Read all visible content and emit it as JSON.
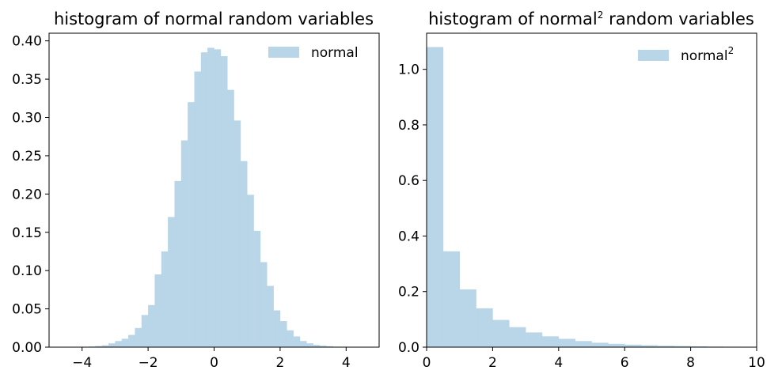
{
  "colors": {
    "bar": "#b9d5e8",
    "axes": "#000000",
    "background": "#ffffff"
  },
  "chart_data": [
    {
      "type": "bar",
      "histogram": true,
      "title": "histogram of normal random variables",
      "title_parts": {
        "base": "histogram of normal random variables",
        "sup": "",
        "tail": ""
      },
      "xlabel": "",
      "ylabel": "",
      "xlim": [
        -5,
        5
      ],
      "ylim": [
        0,
        0.41
      ],
      "xticks": [
        -4,
        -2,
        0,
        2,
        4
      ],
      "xtick_labels": [
        "−4",
        "−2",
        "0",
        "2",
        "4"
      ],
      "yticks": [
        0,
        0.05,
        0.1,
        0.15,
        0.2,
        0.25,
        0.3,
        0.35,
        0.4
      ],
      "ytick_labels": [
        "0.00",
        "0.05",
        "0.10",
        "0.15",
        "0.20",
        "0.25",
        "0.30",
        "0.35",
        "0.40"
      ],
      "legend": {
        "position": "upper right",
        "label_base": "normal",
        "label_sup": ""
      },
      "grid": false,
      "bin_edges": [
        -4.2,
        -4.0,
        -3.8,
        -3.6,
        -3.4,
        -3.2,
        -3.0,
        -2.8,
        -2.6,
        -2.4,
        -2.2,
        -2.0,
        -1.8,
        -1.6,
        -1.4,
        -1.2,
        -1.0,
        -0.8,
        -0.6,
        -0.4,
        -0.2,
        0.0,
        0.2,
        0.4,
        0.6,
        0.8,
        1.0,
        1.2,
        1.4,
        1.6,
        1.8,
        2.0,
        2.2,
        2.4,
        2.6,
        2.8,
        3.0,
        3.2,
        3.4,
        3.6,
        3.8,
        4.0,
        4.2
      ],
      "values": [
        0.0003,
        0.0005,
        0.0008,
        0.0015,
        0.0025,
        0.005,
        0.008,
        0.011,
        0.016,
        0.025,
        0.042,
        0.055,
        0.095,
        0.125,
        0.17,
        0.217,
        0.27,
        0.32,
        0.36,
        0.385,
        0.391,
        0.389,
        0.38,
        0.336,
        0.296,
        0.243,
        0.199,
        0.152,
        0.111,
        0.08,
        0.048,
        0.034,
        0.022,
        0.014,
        0.008,
        0.005,
        0.003,
        0.002,
        0.0012,
        0.0006,
        0.0003,
        0.0001
      ]
    },
    {
      "type": "bar",
      "histogram": true,
      "title": "histogram of normal^2 random variables",
      "title_parts": {
        "base": "histogram of normal",
        "sup": "2",
        "tail": " random variables"
      },
      "xlabel": "",
      "ylabel": "",
      "xlim": [
        0,
        10
      ],
      "ylim": [
        0,
        1.13
      ],
      "xticks": [
        0,
        2,
        4,
        6,
        8,
        10
      ],
      "xtick_labels": [
        "0",
        "2",
        "4",
        "6",
        "8",
        "10"
      ],
      "yticks": [
        0,
        0.2,
        0.4,
        0.6,
        0.8,
        1.0
      ],
      "ytick_labels": [
        "0.0",
        "0.2",
        "0.4",
        "0.6",
        "0.8",
        "1.0"
      ],
      "legend": {
        "position": "upper right",
        "label_base": "normal",
        "label_sup": "2"
      },
      "grid": false,
      "bin_edges": [
        0.0,
        0.5,
        1.0,
        1.5,
        2.0,
        2.5,
        3.0,
        3.5,
        4.0,
        4.5,
        5.0,
        5.5,
        6.0,
        6.5,
        7.0,
        7.5,
        8.0,
        8.5,
        9.0,
        9.5,
        10.0
      ],
      "values": [
        1.08,
        0.345,
        0.208,
        0.14,
        0.098,
        0.072,
        0.053,
        0.039,
        0.03,
        0.022,
        0.016,
        0.012,
        0.009,
        0.007,
        0.005,
        0.004,
        0.003,
        0.002,
        0.0015,
        0.001
      ]
    }
  ]
}
